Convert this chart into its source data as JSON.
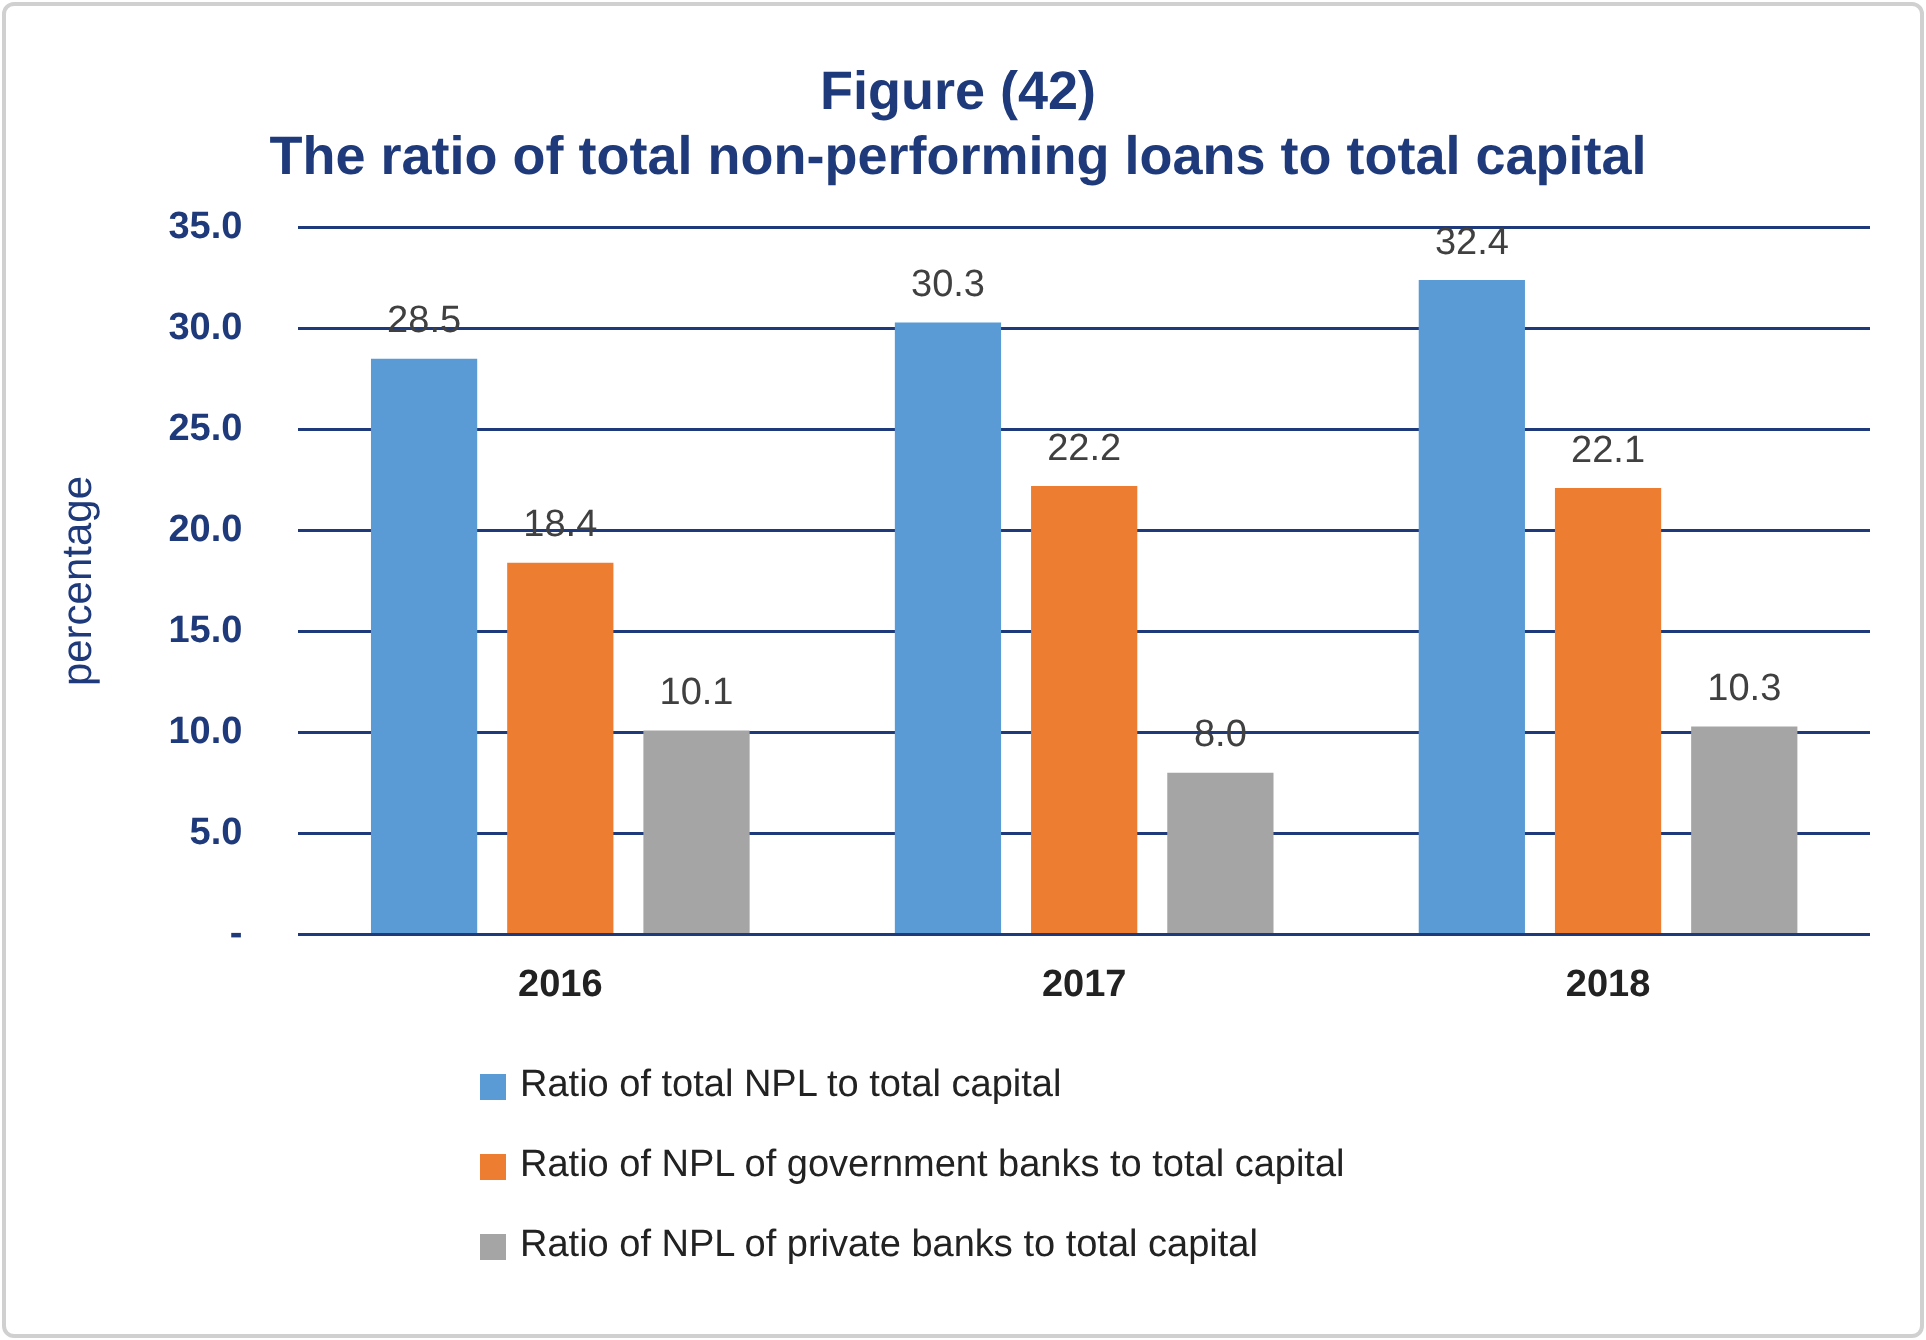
{
  "chart_data": {
    "type": "bar",
    "title": "Figure (42)\nThe ratio of total non-performing loans to total capital",
    "ylabel": "percentage",
    "categories": [
      "2016",
      "2017",
      "2018"
    ],
    "series": [
      {
        "name": "Ratio of total NPL to total capital",
        "color": "#5b9bd5",
        "values": [
          28.5,
          30.3,
          32.4
        ],
        "value_labels": [
          "28.5",
          "30.3",
          "32.4"
        ]
      },
      {
        "name": "Ratio of NPL of government banks to total capital",
        "color": "#ed7d31",
        "values": [
          18.4,
          22.2,
          22.1
        ],
        "value_labels": [
          "18.4",
          "22.2",
          "22.1"
        ]
      },
      {
        "name": "Ratio of NPL of private banks to total capital",
        "color": "#a5a5a5",
        "values": [
          10.1,
          8.0,
          10.3
        ],
        "value_labels": [
          "10.1",
          "8.0",
          "10.3"
        ]
      }
    ],
    "ylim": [
      0,
      35
    ],
    "yticks": [
      {
        "value": 0,
        "label": "-"
      },
      {
        "value": 5,
        "label": "5.0"
      },
      {
        "value": 10,
        "label": "10.0"
      },
      {
        "value": 15,
        "label": "15.0"
      },
      {
        "value": 20,
        "label": "20.0"
      },
      {
        "value": 25,
        "label": "25.0"
      },
      {
        "value": 30,
        "label": "30.0"
      },
      {
        "value": 35,
        "label": "35.0"
      }
    ],
    "grid": "y",
    "legend": "bottom"
  }
}
